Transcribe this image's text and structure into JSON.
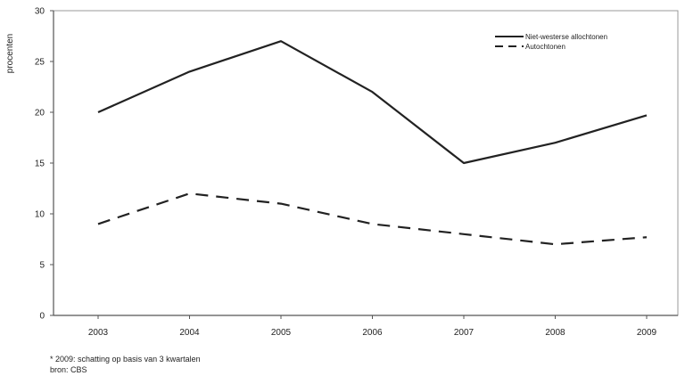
{
  "chart_data": {
    "type": "line",
    "title": "",
    "xlabel": "",
    "ylabel": "procenten",
    "categories": [
      "2003",
      "2004",
      "2005",
      "2006",
      "2007",
      "2008",
      "2009"
    ],
    "ylim": [
      0,
      30
    ],
    "yticks": [
      0,
      5,
      10,
      15,
      20,
      25,
      30
    ],
    "grid": false,
    "legend_position": "top-right",
    "series": [
      {
        "name": "Niet-westerse allochtonen",
        "values": [
          20,
          24,
          27,
          22,
          15,
          17,
          19.7
        ],
        "style": "solid",
        "color": "#222222"
      },
      {
        "name": "Autochtonen",
        "values": [
          9,
          12,
          11,
          9,
          8,
          7,
          7.7
        ],
        "style": "dashed",
        "color": "#222222"
      }
    ]
  },
  "notes": {
    "footnote": "* 2009: schatting op basis van 3 kwartalen",
    "source": "bron: CBS"
  }
}
